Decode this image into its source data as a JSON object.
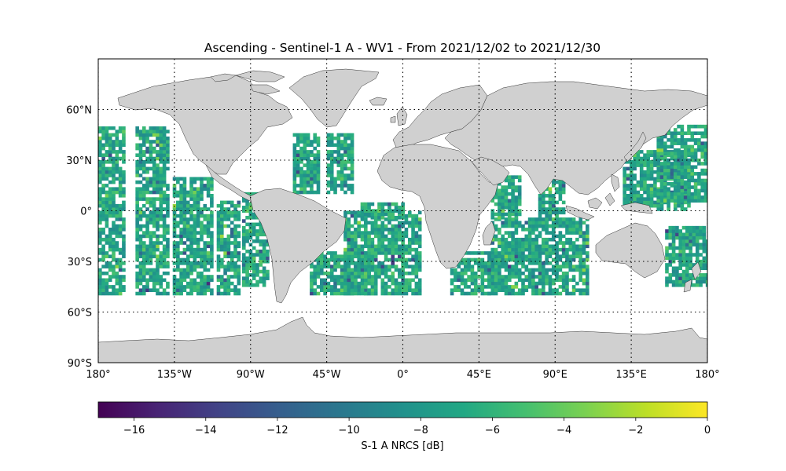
{
  "map": {
    "title": "Ascending - Sentinel-1 A - WV1 - From 2021/12/02 to 2021/12/30",
    "projection": "PlateCarree",
    "extent": {
      "lon": [
        -180,
        180
      ],
      "lat": [
        -90,
        90
      ]
    },
    "lon_ticks": [
      {
        "value": -180,
        "label": "180°"
      },
      {
        "value": -135,
        "label": "135°W"
      },
      {
        "value": -90,
        "label": "90°W"
      },
      {
        "value": -45,
        "label": "45°W"
      },
      {
        "value": 0,
        "label": "0°"
      },
      {
        "value": 45,
        "label": "45°E"
      },
      {
        "value": 90,
        "label": "90°E"
      },
      {
        "value": 135,
        "label": "135°E"
      },
      {
        "value": 180,
        "label": "180°"
      }
    ],
    "lat_ticks": [
      {
        "value": 60,
        "label": "60°N"
      },
      {
        "value": 30,
        "label": "30°N"
      },
      {
        "value": 0,
        "label": "0°"
      },
      {
        "value": -30,
        "label": "30°S"
      },
      {
        "value": -60,
        "label": "60°S"
      },
      {
        "value": -90,
        "label": "90°S"
      }
    ],
    "gridlines": {
      "style": "dotted",
      "color": "#000000"
    },
    "land_color": "#d0d0d0",
    "ocean_color": "#ffffff",
    "coverage": {
      "lat_range": [
        -50,
        50
      ],
      "typical_value_db": -7,
      "swaths": [
        {
          "lon": [
            -180,
            -165
          ],
          "lat": [
            -50,
            50
          ]
        },
        {
          "lon": [
            -158,
            -138
          ],
          "lat": [
            -50,
            50
          ]
        },
        {
          "lon": [
            -136,
            -112
          ],
          "lat": [
            -50,
            20
          ]
        },
        {
          "lon": [
            -110,
            -97
          ],
          "lat": [
            -50,
            5
          ]
        },
        {
          "lon": [
            -95,
            -80
          ],
          "lat": [
            -45,
            10
          ]
        },
        {
          "lon": [
            -65,
            -50
          ],
          "lat": [
            10,
            45
          ]
        },
        {
          "lon": [
            -45,
            -30
          ],
          "lat": [
            10,
            45
          ]
        },
        {
          "lon": [
            -55,
            -15
          ],
          "lat": [
            -50,
            -25
          ]
        },
        {
          "lon": [
            -35,
            10
          ],
          "lat": [
            -50,
            0
          ]
        },
        {
          "lon": [
            -25,
            0
          ],
          "lat": [
            -5,
            5
          ]
        },
        {
          "lon": [
            28,
            55
          ],
          "lat": [
            -50,
            -25
          ]
        },
        {
          "lon": [
            50,
            110
          ],
          "lat": [
            -50,
            -5
          ]
        },
        {
          "lon": [
            52,
            70
          ],
          "lat": [
            -5,
            20
          ]
        },
        {
          "lon": [
            80,
            95
          ],
          "lat": [
            -10,
            20
          ]
        },
        {
          "lon": [
            130,
            170
          ],
          "lat": [
            0,
            35
          ]
        },
        {
          "lon": [
            150,
            180
          ],
          "lat": [
            5,
            50
          ]
        },
        {
          "lon": [
            155,
            180
          ],
          "lat": [
            -45,
            -10
          ]
        }
      ]
    }
  },
  "colorbar": {
    "label": "S-1 A NRCS [dB]",
    "cmap": "viridis",
    "vmin": -17,
    "vmax": 0,
    "ticks": [
      {
        "value": -16,
        "label": "−16"
      },
      {
        "value": -14,
        "label": "−14"
      },
      {
        "value": -12,
        "label": "−12"
      },
      {
        "value": -10,
        "label": "−10"
      },
      {
        "value": -8,
        "label": "−8"
      },
      {
        "value": -6,
        "label": "−6"
      },
      {
        "value": -4,
        "label": "−4"
      },
      {
        "value": -2,
        "label": "−2"
      },
      {
        "value": 0,
        "label": "0"
      }
    ]
  }
}
